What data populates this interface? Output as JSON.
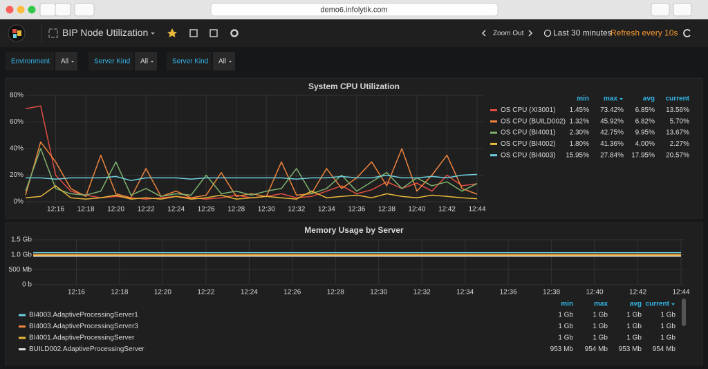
{
  "browser": {
    "url": "demo6.infolytik.com"
  },
  "nav": {
    "title": "BIP Node Utilization",
    "zoom_out": "Zoom Out",
    "time_range": "Last 30 minutes",
    "refresh": "Refresh every 10s"
  },
  "variables": [
    {
      "label": "Environment",
      "value": "All"
    },
    {
      "label": "Server Kind",
      "value": "All"
    },
    {
      "label": "Server Kind",
      "value": "All"
    }
  ],
  "chart_data": [
    {
      "type": "line",
      "title": "System CPU Utilization",
      "x": [
        null,
        null,
        "12:16",
        null,
        "12:18",
        null,
        "12:20",
        null,
        "12:22",
        null,
        "12:24",
        null,
        "12:26",
        null,
        "12:28",
        null,
        "12:30",
        null,
        "12:32",
        null,
        "12:34",
        null,
        "12:36",
        null,
        "12:38",
        null,
        "12:40",
        null,
        "12:42",
        null,
        "12:44"
      ],
      "ylim": [
        0,
        80
      ],
      "yticks": [
        {
          "value": 0,
          "label": "0%"
        },
        {
          "value": 20,
          "label": "20%"
        },
        {
          "value": 40,
          "label": "40%"
        },
        {
          "value": 60,
          "label": "60%"
        },
        {
          "value": 80,
          "label": "80%"
        }
      ],
      "grid": true,
      "series": [
        {
          "name": "OS CPU (XI3001)",
          "color": "#e24d42",
          "values": [
            70,
            72,
            20,
            8,
            5,
            3,
            4,
            3,
            2,
            3,
            4,
            3,
            2,
            3,
            5,
            3,
            4,
            6,
            3,
            4,
            8,
            12,
            6,
            9,
            15,
            10,
            14,
            8,
            20,
            12,
            13.56
          ]
        },
        {
          "name": "OS CPU (BUILD002)",
          "color": "#ef843c",
          "values": [
            5,
            45,
            30,
            10,
            4,
            35,
            6,
            3,
            25,
            4,
            8,
            3,
            5,
            22,
            4,
            6,
            4,
            30,
            5,
            6,
            25,
            10,
            18,
            30,
            12,
            40,
            8,
            20,
            35,
            10,
            5.7
          ]
        },
        {
          "name": "OS CPU (BI4001)",
          "color": "#7eb26d",
          "values": [
            8,
            40,
            10,
            6,
            5,
            8,
            30,
            5,
            10,
            4,
            6,
            5,
            20,
            6,
            8,
            5,
            8,
            10,
            25,
            6,
            10,
            20,
            8,
            15,
            22,
            10,
            18,
            12,
            15,
            8,
            13.67
          ]
        },
        {
          "name": "OS CPU (BI4002)",
          "color": "#eab839",
          "values": [
            3,
            4,
            12,
            3,
            2,
            3,
            5,
            2,
            3,
            2,
            4,
            2,
            3,
            5,
            2,
            3,
            4,
            3,
            2,
            8,
            3,
            4,
            5,
            3,
            6,
            4,
            3,
            5,
            4,
            3,
            2.27
          ]
        },
        {
          "name": "OS CPU (BI4003)",
          "color": "#6ed0e0",
          "values": [
            18,
            18,
            17,
            18,
            18,
            18,
            19,
            16,
            18,
            18,
            18,
            17,
            18,
            18,
            18,
            18,
            18,
            18,
            17,
            18,
            18,
            19,
            18,
            18,
            20,
            18,
            18,
            19,
            18,
            20,
            20.57
          ]
        }
      ],
      "legend": {
        "columns": [
          "min",
          "max",
          "avg",
          "current"
        ],
        "rows": [
          [
            "1.45%",
            "73.42%",
            "6.85%",
            "13.56%"
          ],
          [
            "1.32%",
            "45.92%",
            "6.82%",
            "5.70%"
          ],
          [
            "2.30%",
            "42.75%",
            "9.95%",
            "13.67%"
          ],
          [
            "1.80%",
            "41.36%",
            "4.00%",
            "2.27%"
          ],
          [
            "15.95%",
            "27.84%",
            "17.95%",
            "20.57%"
          ]
        ]
      }
    },
    {
      "type": "line",
      "title": "Memory Usage by Server",
      "x": [
        null,
        "12:16",
        "12:18",
        "12:20",
        "12:22",
        "12:24",
        "12:26",
        "12:28",
        "12:30",
        "12:32",
        "12:34",
        "12:36",
        "12:38",
        "12:40",
        "12:42",
        "12:44"
      ],
      "ylim": [
        0,
        1500
      ],
      "yticks": [
        {
          "value": 0,
          "label": "0 b"
        },
        {
          "value": 500,
          "label": "500 Mb"
        },
        {
          "value": 1000,
          "label": "1.0 Gb"
        },
        {
          "value": 1500,
          "label": "1.5 Gb"
        }
      ],
      "grid": true,
      "series": [
        {
          "name": "BI4003.AdaptiveProcessingServer1",
          "color": "#6ed0e0",
          "values": [
            1070,
            1070,
            1070,
            1070,
            1070,
            1070,
            1070,
            1070,
            1070,
            1070,
            1070,
            1070,
            1070,
            1070,
            1070,
            1070
          ]
        },
        {
          "name": "BI4003.AdaptiveProcessingServer3",
          "color": "#ef843c",
          "values": [
            1010,
            1010,
            1010,
            1010,
            1010,
            1010,
            1010,
            1010,
            1010,
            1010,
            1010,
            1010,
            1010,
            1010,
            1010,
            1010
          ]
        },
        {
          "name": "BI4001.AdaptiveProcessingServer",
          "color": "#eab839",
          "values": [
            985,
            985,
            985,
            985,
            985,
            985,
            985,
            985,
            985,
            985,
            985,
            985,
            985,
            985,
            985,
            985
          ]
        },
        {
          "name": "BUILD002.AdaptiveProcessingServer",
          "color": "#e0e0e0",
          "values": [
            953,
            953,
            954,
            953,
            954,
            953,
            953,
            954,
            953,
            953,
            954,
            953,
            954,
            953,
            953,
            954
          ]
        }
      ],
      "legend": {
        "columns": [
          "min",
          "max",
          "avg",
          "current"
        ],
        "rows": [
          [
            "1 Gb",
            "1 Gb",
            "1 Gb",
            "1 Gb"
          ],
          [
            "1 Gb",
            "1 Gb",
            "1 Gb",
            "1 Gb"
          ],
          [
            "1 Gb",
            "1 Gb",
            "1 Gb",
            "1 Gb"
          ],
          [
            "953 Mb",
            "954 Mb",
            "953 Mb",
            "954 Mb"
          ]
        ]
      }
    }
  ]
}
